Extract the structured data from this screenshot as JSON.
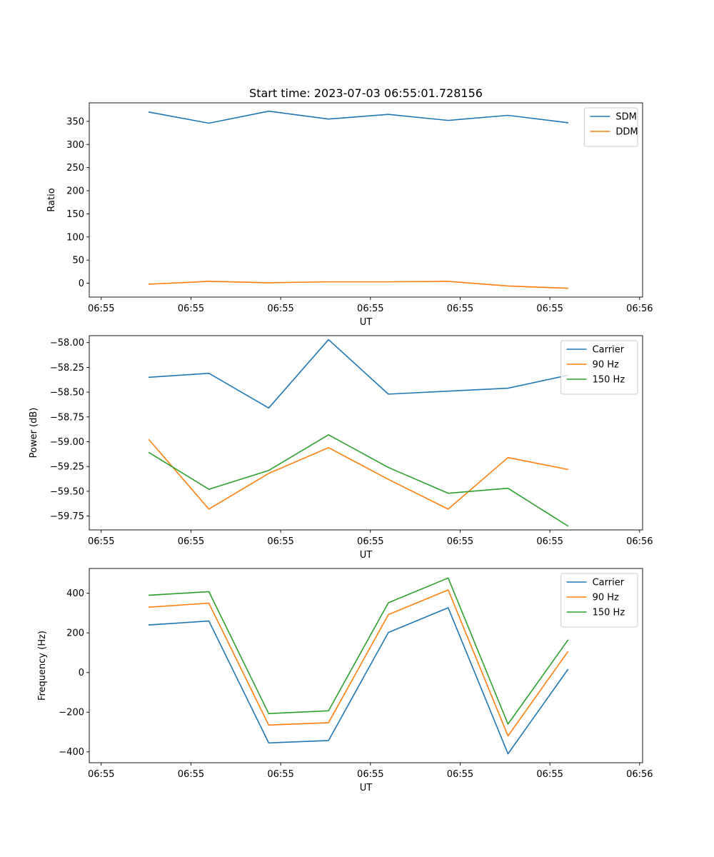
{
  "title": "Start time: 2023-07-03 06:55:01.728156",
  "chart_data": [
    {
      "type": "line",
      "xlabel": "UT",
      "ylabel": "Ratio",
      "x": [
        1,
        2,
        3,
        4,
        5,
        6,
        7,
        8
      ],
      "xlim": [
        0,
        9.25
      ],
      "xticks": [
        0.2,
        1.7,
        3.2,
        4.7,
        6.2,
        7.7,
        9.2
      ],
      "xtick_labels": [
        "06:55",
        "06:55",
        "06:55",
        "06:55",
        "06:55",
        "06:55",
        "06:56"
      ],
      "ylim": [
        -30,
        390
      ],
      "yticks": [
        0,
        50,
        100,
        150,
        200,
        250,
        300,
        350
      ],
      "ytick_labels": [
        "0",
        "50",
        "100",
        "150",
        "200",
        "250",
        "300",
        "350"
      ],
      "legend_position": "top-right",
      "series": [
        {
          "name": "SDM",
          "color": "#1f77b4",
          "values": [
            370,
            346,
            372,
            355,
            365,
            352,
            363,
            347
          ]
        },
        {
          "name": "DDM",
          "color": "#ff7f0e",
          "values": [
            -2,
            4,
            1,
            3,
            3,
            4,
            -6,
            -11
          ]
        }
      ]
    },
    {
      "type": "line",
      "xlabel": "UT",
      "ylabel": "Power (dB)",
      "x": [
        1,
        2,
        3,
        4,
        5,
        6,
        7,
        8
      ],
      "xlim": [
        0,
        9.25
      ],
      "xticks": [
        0.2,
        1.7,
        3.2,
        4.7,
        6.2,
        7.7,
        9.2
      ],
      "xtick_labels": [
        "06:55",
        "06:55",
        "06:55",
        "06:55",
        "06:55",
        "06:55",
        "06:56"
      ],
      "ylim": [
        -59.89,
        -57.93
      ],
      "yticks": [
        -58.0,
        -58.25,
        -58.5,
        -58.75,
        -59.0,
        -59.25,
        -59.5,
        -59.75
      ],
      "ytick_labels": [
        "−58.00",
        "−58.25",
        "−58.50",
        "−58.75",
        "−59.00",
        "−59.25",
        "−59.50",
        "−59.75"
      ],
      "legend_position": "top-right",
      "series": [
        {
          "name": "Carrier",
          "color": "#1f77b4",
          "values": [
            -58.35,
            -58.31,
            -58.66,
            -57.97,
            -58.52,
            -58.49,
            -58.46,
            -58.33
          ]
        },
        {
          "name": "90 Hz",
          "color": "#ff7f0e",
          "values": [
            -58.98,
            -59.68,
            -59.32,
            -59.06,
            -59.38,
            -59.68,
            -59.16,
            -59.28
          ]
        },
        {
          "name": "150 Hz",
          "color": "#2ca02c",
          "values": [
            -59.11,
            -59.48,
            -59.29,
            -58.93,
            -59.26,
            -59.52,
            -59.47,
            -59.85
          ]
        }
      ]
    },
    {
      "type": "line",
      "xlabel": "UT",
      "ylabel": "Frequency (Hz)",
      "x": [
        1,
        2,
        3,
        4,
        5,
        6,
        7,
        8
      ],
      "xlim": [
        0,
        9.25
      ],
      "xticks": [
        0.2,
        1.7,
        3.2,
        4.7,
        6.2,
        7.7,
        9.2
      ],
      "xtick_labels": [
        "06:55",
        "06:55",
        "06:55",
        "06:55",
        "06:55",
        "06:55",
        "06:56"
      ],
      "ylim": [
        -455,
        525
      ],
      "yticks": [
        -400,
        -200,
        0,
        200,
        400
      ],
      "ytick_labels": [
        "−400",
        "−200",
        "0",
        "200",
        "400"
      ],
      "legend_position": "top-right",
      "series": [
        {
          "name": "Carrier",
          "color": "#1f77b4",
          "values": [
            240,
            260,
            -355,
            -343,
            202,
            327,
            -410,
            15
          ]
        },
        {
          "name": "90 Hz",
          "color": "#ff7f0e",
          "values": [
            330,
            350,
            -265,
            -253,
            292,
            417,
            -320,
            105
          ]
        },
        {
          "name": "150 Hz",
          "color": "#2ca02c",
          "values": [
            390,
            408,
            -207,
            -193,
            352,
            477,
            -260,
            163
          ]
        }
      ]
    }
  ]
}
